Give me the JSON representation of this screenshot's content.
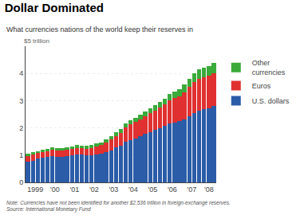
{
  "chart_data": {
    "type": "bar",
    "title": "Dollar Dominated",
    "subtitle": "What currencies nations of the world keep their reserves in",
    "ylabel": "$5 trillion",
    "note": "Note: Currencies have not been identified for another $2.536 trillion in foreign-exchange reserves.\nSource: International Monetary Fund",
    "stacked": true,
    "grid": true,
    "legend": "right",
    "categories": [
      "1999",
      null,
      null,
      null,
      "'00",
      null,
      null,
      null,
      "'01",
      null,
      null,
      null,
      "'02",
      null,
      null,
      null,
      "'03",
      null,
      null,
      null,
      "'04",
      null,
      null,
      null,
      "'05",
      null,
      null,
      null,
      "'06",
      null,
      null,
      null,
      "'07",
      null,
      null,
      null,
      "'08",
      null,
      null
    ],
    "series": [
      {
        "name": "U.S. dollars",
        "color": "#2b5ca8",
        "values": [
          0.76,
          0.8,
          0.87,
          0.91,
          0.93,
          0.97,
          0.95,
          0.95,
          0.97,
          1.0,
          1.02,
          1.01,
          0.99,
          1.0,
          1.03,
          1.05,
          1.1,
          1.18,
          1.28,
          1.35,
          1.48,
          1.55,
          1.62,
          1.7,
          1.78,
          1.85,
          1.92,
          1.98,
          2.07,
          2.15,
          2.2,
          2.24,
          2.3,
          2.42,
          2.55,
          2.62,
          2.68,
          2.73,
          2.8
        ]
      },
      {
        "name": "Euros",
        "color": "#e03030",
        "values": [
          0.2,
          0.22,
          0.2,
          0.21,
          0.22,
          0.22,
          0.23,
          0.23,
          0.23,
          0.23,
          0.24,
          0.24,
          0.25,
          0.27,
          0.29,
          0.31,
          0.35,
          0.39,
          0.43,
          0.47,
          0.55,
          0.58,
          0.6,
          0.62,
          0.65,
          0.68,
          0.72,
          0.77,
          0.8,
          0.86,
          0.9,
          0.93,
          1.0,
          1.08,
          1.14,
          1.18,
          1.17,
          1.18,
          1.2
        ]
      },
      {
        "name": "Other\ncurrencies",
        "color": "#3aaa3a",
        "values": [
          0.09,
          0.09,
          0.08,
          0.09,
          0.09,
          0.09,
          0.09,
          0.09,
          0.09,
          0.1,
          0.1,
          0.1,
          0.1,
          0.1,
          0.1,
          0.1,
          0.12,
          0.12,
          0.13,
          0.14,
          0.14,
          0.15,
          0.15,
          0.16,
          0.17,
          0.18,
          0.19,
          0.2,
          0.21,
          0.23,
          0.24,
          0.26,
          0.29,
          0.31,
          0.32,
          0.34,
          0.35,
          0.37,
          0.38
        ]
      }
    ],
    "ylim": [
      0,
      5
    ],
    "yticks": [
      0,
      1,
      2,
      3,
      4
    ]
  }
}
